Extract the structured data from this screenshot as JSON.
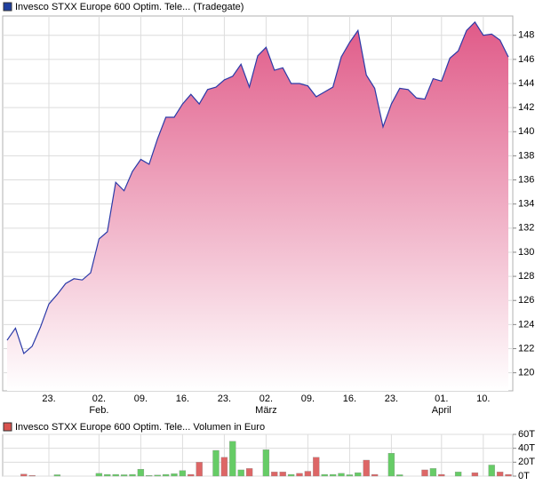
{
  "chart_data": [
    {
      "type": "area",
      "legend": "Invesco STXX Europe 600 Optim. Tele... (Tradegate)",
      "legend_color": "#1f3f9f",
      "line_color": "#2b3aa8",
      "fill_color": "#e05a88",
      "categories": [
        null,
        null,
        null,
        null,
        null,
        "23.",
        null,
        null,
        null,
        null,
        null,
        "02.",
        null,
        null,
        null,
        null,
        "09.",
        null,
        null,
        null,
        null,
        "16.",
        null,
        null,
        null,
        null,
        "23.",
        null,
        null,
        null,
        null,
        "02.",
        null,
        null,
        null,
        null,
        "09.",
        null,
        null,
        null,
        null,
        "16.",
        null,
        null,
        null,
        null,
        "23.",
        null,
        null,
        null,
        null,
        null,
        "01.",
        null,
        null,
        null,
        null,
        "10.",
        null,
        null,
        null
      ],
      "month_labels": [
        null,
        null,
        null,
        null,
        null,
        null,
        null,
        null,
        null,
        null,
        null,
        "Feb.",
        null,
        null,
        null,
        null,
        null,
        null,
        null,
        null,
        null,
        null,
        null,
        null,
        null,
        null,
        null,
        null,
        null,
        null,
        null,
        "März",
        null,
        null,
        null,
        null,
        null,
        null,
        null,
        null,
        null,
        null,
        null,
        null,
        null,
        null,
        null,
        null,
        null,
        null,
        null,
        null,
        "April",
        null,
        null,
        null,
        null,
        null,
        null,
        null,
        null
      ],
      "values": [
        122.7,
        123.7,
        121.6,
        122.2,
        123.8,
        125.7,
        126.5,
        127.4,
        127.8,
        127.7,
        128.3,
        131.1,
        131.7,
        135.8,
        135.1,
        136.7,
        137.7,
        137.3,
        139.4,
        141.2,
        141.2,
        142.3,
        143.1,
        142.3,
        143.5,
        143.7,
        144.3,
        144.6,
        145.6,
        143.7,
        146.3,
        147.0,
        145.1,
        145.3,
        144.0,
        144.0,
        143.8,
        142.9,
        143.3,
        143.7,
        146.2,
        147.4,
        148.4,
        144.7,
        143.6,
        140.4,
        142.3,
        143.6,
        143.5,
        142.8,
        142.7,
        144.4,
        144.2,
        146.1,
        146.7,
        148.4,
        149.1,
        148.0,
        148.1,
        147.6,
        146.2
      ],
      "ylim": [
        118.5,
        149.6
      ],
      "yticks": [
        120,
        122,
        124,
        126,
        128,
        130,
        132,
        134,
        136,
        138,
        140,
        142,
        144,
        146,
        148
      ],
      "grid": true
    },
    {
      "type": "bar",
      "legend": "Invesco STXX Europe 600 Optim. Tele... Volumen in Euro",
      "legend_color": "#d9534f",
      "values": [
        0,
        0,
        3000,
        1000,
        0,
        0,
        2000,
        0,
        0,
        0,
        0,
        4000,
        2500,
        2500,
        2000,
        2500,
        10000,
        1000,
        1500,
        2500,
        3500,
        8000,
        2500,
        20000,
        0,
        37000,
        27000,
        50000,
        9000,
        11000,
        0,
        38000,
        6000,
        6000,
        2500,
        4000,
        7000,
        27000,
        2500,
        2500,
        4000,
        2000,
        5000,
        23000,
        2500,
        0,
        33000,
        2000,
        0,
        0,
        9000,
        11000,
        2500,
        0,
        6000,
        0,
        5000,
        0,
        16000,
        6000,
        2500
      ],
      "colors": [
        "#66cc66",
        "#66cc66",
        "#dd6666",
        "#dd6666",
        "#66cc66",
        "#66cc66",
        "#66cc66",
        "#66cc66",
        "#66cc66",
        "#66cc66",
        "#66cc66",
        "#66cc66",
        "#66cc66",
        "#66cc66",
        "#66cc66",
        "#66cc66",
        "#66cc66",
        "#66cc66",
        "#66cc66",
        "#66cc66",
        "#66cc66",
        "#66cc66",
        "#dd6666",
        "#dd6666",
        "#66cc66",
        "#66cc66",
        "#dd6666",
        "#66cc66",
        "#66cc66",
        "#dd6666",
        "#66cc66",
        "#66cc66",
        "#dd6666",
        "#dd6666",
        "#66cc66",
        "#dd6666",
        "#dd6666",
        "#dd6666",
        "#66cc66",
        "#66cc66",
        "#66cc66",
        "#66cc66",
        "#66cc66",
        "#dd6666",
        "#dd6666",
        "#66cc66",
        "#66cc66",
        "#66cc66",
        "#66cc66",
        "#66cc66",
        "#dd6666",
        "#66cc66",
        "#dd6666",
        "#66cc66",
        "#66cc66",
        "#66cc66",
        "#dd6666",
        "#66cc66",
        "#66cc66",
        "#dd6666",
        "#dd6666"
      ],
      "ylim": [
        0,
        60000
      ],
      "yticks": [
        {
          "value": 0,
          "label": "0T"
        },
        {
          "value": 20000,
          "label": "20T"
        },
        {
          "value": 40000,
          "label": "40T"
        },
        {
          "value": 60000,
          "label": "60T"
        }
      ],
      "grid": true
    }
  ]
}
